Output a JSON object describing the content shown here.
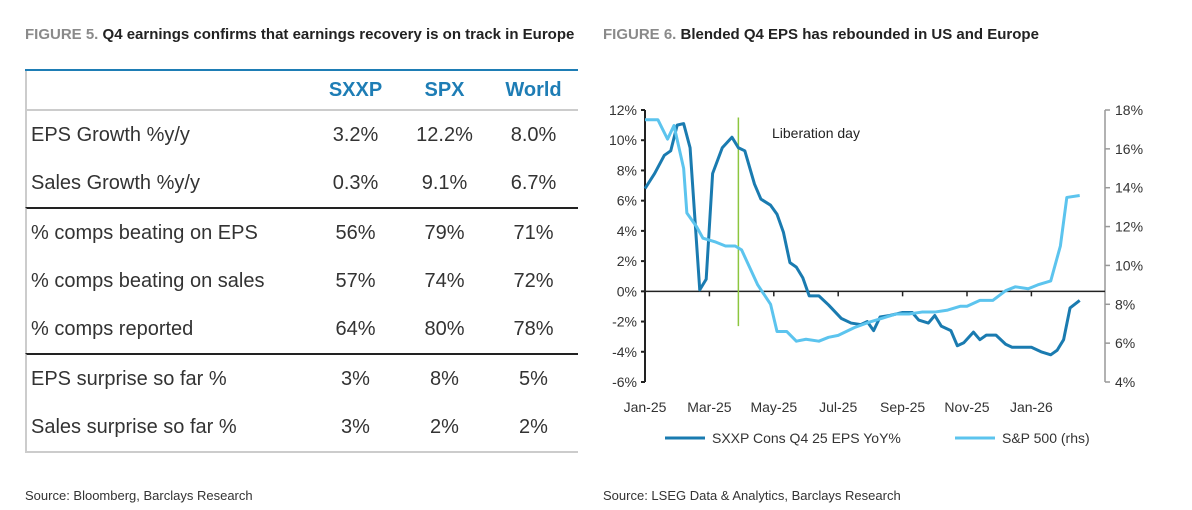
{
  "figure5": {
    "number": "FIGURE 5.",
    "title": "Q4 earnings confirms that earnings recovery is on track in Europe",
    "columns": [
      "SXXP",
      "SPX",
      "World"
    ],
    "rows": [
      {
        "label": "EPS Growth %y/y",
        "values": [
          "3.2%",
          "12.2%",
          "8.0%"
        ]
      },
      {
        "label": "Sales Growth %y/y",
        "values": [
          "0.3%",
          "9.1%",
          "6.7%"
        ]
      },
      {
        "label": "% comps beating on EPS",
        "values": [
          "56%",
          "79%",
          "71%"
        ]
      },
      {
        "label": "% comps beating on sales",
        "values": [
          "57%",
          "74%",
          "72%"
        ]
      },
      {
        "label": "% comps reported",
        "values": [
          "64%",
          "80%",
          "78%"
        ]
      },
      {
        "label": "EPS surprise so far %",
        "values": [
          "3%",
          "8%",
          "5%"
        ]
      },
      {
        "label": "Sales surprise so far %",
        "values": [
          "3%",
          "2%",
          "2%"
        ]
      }
    ],
    "source": "Source: Bloomberg, Barclays Research"
  },
  "figure6": {
    "number": "FIGURE 6.",
    "title": "Blended Q4 EPS has rebounded in US and Europe",
    "source": "Source: LSEG Data & Analytics, Barclays Research"
  },
  "chart_data": {
    "type": "line",
    "title": "Blended Q4 EPS has rebounded in US and Europe",
    "x_unit": "months since Jan-25",
    "xticks": [
      "Jan-25",
      "Mar-25",
      "May-25",
      "Jul-25",
      "Sep-25",
      "Nov-25",
      "Jan-26"
    ],
    "yticks_left": [
      "12%",
      "10%",
      "8%",
      "6%",
      "4%",
      "2%",
      "0%",
      "-2%",
      "-4%",
      "-6%"
    ],
    "yticks_right": [
      "18%",
      "16%",
      "14%",
      "12%",
      "10%",
      "8%",
      "6%",
      "4%"
    ],
    "ylim_left": [
      -6,
      12
    ],
    "ylim_right": [
      4,
      18
    ],
    "annotation": {
      "label": "Liberation day",
      "x": 2.9,
      "y_range": [
        -2.3,
        11.5
      ],
      "color": "#8dc63f"
    },
    "series": [
      {
        "name": "SXXP Cons Q4 25 EPS YoY%",
        "axis": "left",
        "color": "#1a7bb0",
        "x": [
          0,
          0.3,
          0.6,
          0.8,
          1.0,
          1.2,
          1.4,
          1.7,
          1.9,
          2.1,
          2.4,
          2.7,
          2.9,
          3.1,
          3.4,
          3.6,
          3.9,
          4.1,
          4.3,
          4.5,
          4.7,
          4.9,
          5.1,
          5.4,
          5.7,
          6.1,
          6.4,
          6.7,
          6.9,
          7.1,
          7.3,
          7.6,
          8.0,
          8.3,
          8.5,
          8.8,
          9.0,
          9.2,
          9.5,
          9.7,
          9.9,
          10.2,
          10.4,
          10.6,
          10.9,
          11.2,
          11.4,
          11.7,
          12.0,
          12.3,
          12.6,
          12.8,
          13.0,
          13.2,
          13.5
        ],
        "y": [
          6.8,
          7.8,
          9.0,
          9.3,
          11.0,
          11.1,
          9.5,
          0.1,
          0.8,
          7.8,
          9.5,
          10.2,
          9.5,
          9.3,
          7.1,
          6.1,
          5.7,
          5.1,
          3.9,
          1.9,
          1.6,
          0.9,
          -0.3,
          -0.3,
          -0.9,
          -1.8,
          -2.1,
          -2.2,
          -2.0,
          -2.6,
          -1.7,
          -1.6,
          -1.4,
          -1.4,
          -1.9,
          -2.1,
          -1.6,
          -2.3,
          -2.6,
          -3.6,
          -3.4,
          -2.7,
          -3.2,
          -2.9,
          -2.9,
          -3.5,
          -3.7,
          -3.7,
          -3.7,
          -4.0,
          -4.2,
          -3.9,
          -3.2,
          -1.1,
          -0.6
        ]
      },
      {
        "name": "S&P 500 (rhs)",
        "axis": "right",
        "color": "#5cc4ee",
        "x": [
          0,
          0.4,
          0.7,
          0.9,
          1.2,
          1.3,
          1.6,
          1.8,
          2.2,
          2.5,
          2.8,
          3.0,
          3.5,
          3.9,
          4.1,
          4.4,
          4.7,
          5.0,
          5.4,
          5.7,
          6.0,
          6.5,
          7.0,
          7.4,
          7.8,
          8.2,
          8.6,
          9.0,
          9.4,
          9.8,
          10.0,
          10.4,
          10.8,
          11.2,
          11.5,
          11.9,
          12.2,
          12.6,
          12.9,
          13.1,
          13.5
        ],
        "y": [
          17.5,
          17.5,
          16.5,
          17.2,
          15.0,
          12.7,
          12.0,
          11.4,
          11.2,
          11.0,
          11.0,
          10.8,
          9.0,
          8.0,
          6.6,
          6.6,
          6.1,
          6.2,
          6.1,
          6.3,
          6.4,
          6.8,
          7.1,
          7.3,
          7.5,
          7.5,
          7.6,
          7.6,
          7.7,
          7.9,
          7.9,
          8.2,
          8.2,
          8.7,
          8.9,
          8.8,
          9.0,
          9.2,
          11.0,
          13.5,
          13.6
        ]
      }
    ]
  }
}
